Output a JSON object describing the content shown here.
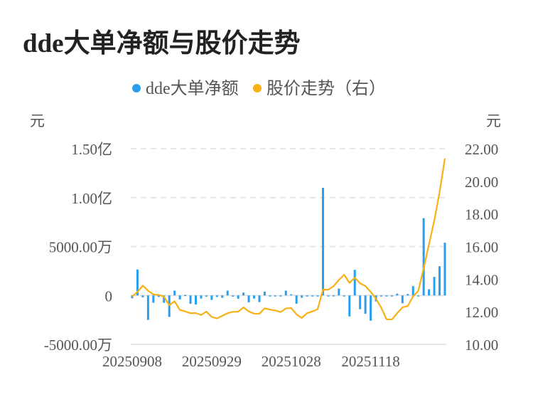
{
  "title": "dde大单净额与股价走势",
  "colors": {
    "bar": "#2a9ff0",
    "line": "#f8b015",
    "grid": "#e6e6e6"
  },
  "chart_data": {
    "type": "bar+line",
    "title": "dde大单净额与股价走势",
    "legend": {
      "position": "top",
      "entries": [
        "dde大单净额",
        "股价走势（右）"
      ]
    },
    "left_axis": {
      "unit_label": "元",
      "ylim": [
        -5000,
        15000
      ],
      "ticks": [
        -5000,
        0,
        5000,
        10000,
        15000
      ],
      "tick_labels": [
        "-5000.00万",
        "0",
        "5000.00万",
        "1.00亿",
        "1.50亿"
      ]
    },
    "right_axis": {
      "unit_label": "元",
      "ylim": [
        10,
        22
      ],
      "ticks": [
        10,
        12,
        14,
        16,
        18,
        20,
        22
      ],
      "tick_labels": [
        "10.00",
        "12.00",
        "14.00",
        "16.00",
        "18.00",
        "20.00",
        "22.00"
      ]
    },
    "x_tick_labels": [
      {
        "index": 0,
        "label": "20250908"
      },
      {
        "index": 15,
        "label": "20250929"
      },
      {
        "index": 30,
        "label": "20251028"
      },
      {
        "index": 45,
        "label": "20251118"
      }
    ],
    "grid": true,
    "series": [
      {
        "name": "dde大单净额",
        "type": "bar",
        "axis": "left",
        "unit": "万元",
        "values": [
          -290,
          2650,
          -190,
          -2500,
          -750,
          -150,
          -750,
          -2190,
          490,
          -410,
          50,
          -850,
          -920,
          -320,
          -120,
          -460,
          -150,
          -240,
          490,
          -120,
          -340,
          290,
          -700,
          -320,
          -680,
          390,
          -20,
          -50,
          -100,
          490,
          120,
          -850,
          -240,
          -20,
          -20,
          -20,
          11000,
          -20,
          10,
          700,
          -50,
          -2140,
          2620,
          -1410,
          -1870,
          -2580,
          -610,
          -20,
          -100,
          -30,
          190,
          -800,
          150,
          950,
          -20,
          7900,
          630,
          1900,
          2990,
          5390
        ]
      },
      {
        "name": "股价走势（右）",
        "type": "line",
        "axis": "right",
        "unit": "元",
        "values": [
          12.93,
          13.22,
          13.6,
          13.29,
          13.06,
          13.03,
          12.93,
          12.4,
          12.64,
          12.11,
          12.02,
          11.91,
          11.92,
          11.8,
          12.01,
          11.68,
          11.59,
          11.75,
          11.91,
          12.0,
          12.0,
          12.27,
          12.02,
          11.88,
          11.88,
          12.21,
          12.13,
          12.08,
          11.98,
          12.2,
          12.23,
          11.84,
          11.62,
          11.91,
          12.02,
          12.16,
          13.36,
          13.35,
          13.57,
          13.95,
          14.27,
          13.77,
          14.09,
          13.74,
          13.58,
          13.22,
          12.8,
          12.24,
          11.53,
          11.53,
          11.91,
          12.27,
          12.35,
          12.94,
          13.29,
          14.67,
          16.13,
          17.59,
          19.33,
          21.4
        ]
      }
    ]
  }
}
